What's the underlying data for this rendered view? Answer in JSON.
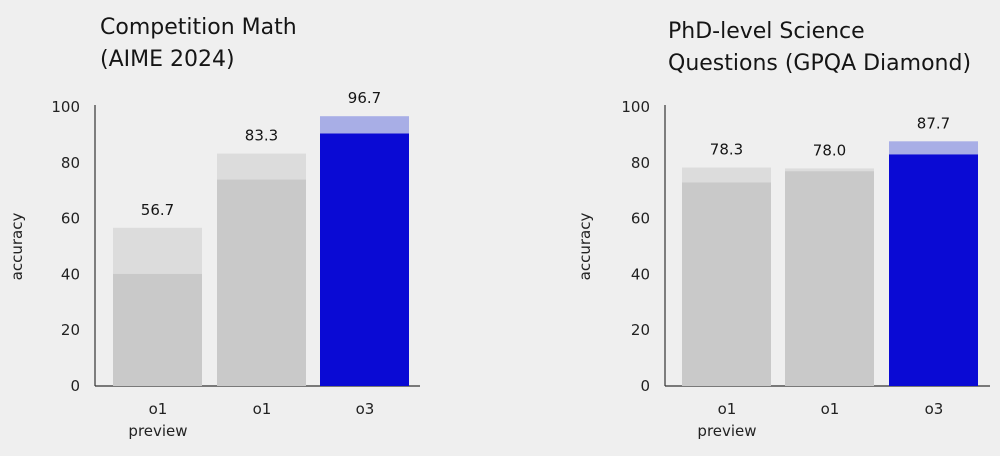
{
  "chart_data": [
    {
      "type": "bar",
      "title": [
        "Competition Math",
        "(AIME 2024)"
      ],
      "ylabel": "accuracy",
      "ylim": [
        0,
        100
      ],
      "yticks": [
        0,
        20,
        40,
        60,
        80,
        100
      ],
      "categories": [
        [
          "o1",
          "preview"
        ],
        [
          "o1"
        ],
        [
          "o3"
        ]
      ],
      "series": [
        {
          "values": [
            40.2,
            74.0,
            90.5
          ]
        },
        {
          "values": [
            56.7,
            83.3,
            96.7
          ]
        }
      ],
      "value_labels": [
        "56.7",
        "83.3",
        "96.7"
      ],
      "colors": {
        "base": [
          "#c9c9c9",
          "#c9c9c9",
          "#0a0ad4"
        ],
        "top": [
          "#dcdcdc",
          "#dcdcdc",
          "#a8aee6"
        ]
      },
      "grid": false
    },
    {
      "type": "bar",
      "title": [
        "PhD-level Science",
        "Questions (GPQA Diamond)"
      ],
      "ylabel": "accuracy",
      "ylim": [
        0,
        100
      ],
      "yticks": [
        0,
        20,
        40,
        60,
        80,
        100
      ],
      "categories": [
        [
          "o1",
          "preview"
        ],
        [
          "o1"
        ],
        [
          "o3"
        ]
      ],
      "series": [
        {
          "values": [
            73.0,
            77.0,
            83.0
          ]
        },
        {
          "values": [
            78.3,
            78.0,
            87.7
          ]
        }
      ],
      "value_labels": [
        "78.3",
        "78.0",
        "87.7"
      ],
      "colors": {
        "base": [
          "#c9c9c9",
          "#c9c9c9",
          "#0a0ad4"
        ],
        "top": [
          "#dcdcdc",
          "#dcdcdc",
          "#a8aee6"
        ]
      },
      "grid": false
    }
  ]
}
